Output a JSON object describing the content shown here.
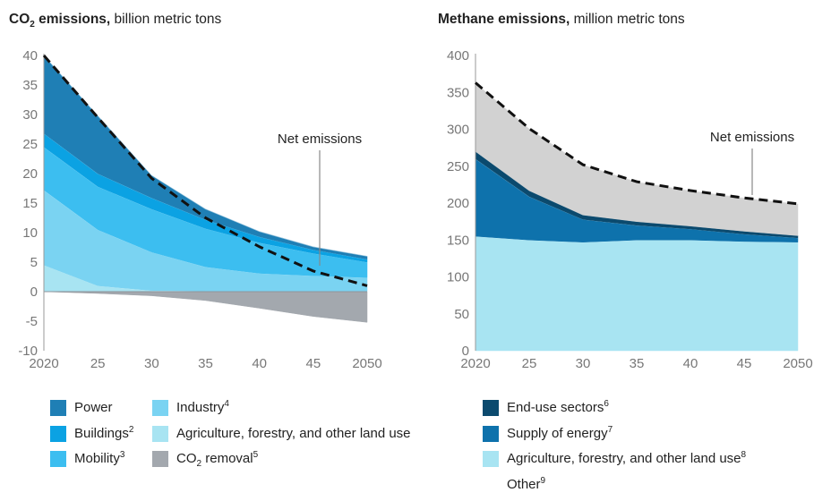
{
  "chart_data": [
    {
      "type": "area",
      "title_bold": "CO",
      "title_bold_sub": "2",
      "title_bold_rest": " emissions,",
      "title_unit": " billion metric tons",
      "x_ticks": [
        "2020",
        "25",
        "30",
        "35",
        "40",
        "45",
        "2050"
      ],
      "x": [
        2020,
        2025,
        2030,
        2035,
        2040,
        2045,
        2050
      ],
      "ylim": [
        -10,
        40
      ],
      "y_ticks": [
        "40",
        "35",
        "30",
        "25",
        "20",
        "15",
        "10",
        "5",
        "0",
        "-5",
        "-10"
      ],
      "colors": {
        "power": "#1f7fb5",
        "buildings": "#0ba2e3",
        "mobility": "#3cbef0",
        "industry": "#7ad3f2",
        "agriculture": "#a8e4f2",
        "removal": "#a3a8ae"
      },
      "series": [
        {
          "key": "agriculture",
          "name": "Agriculture, forestry, and other land use",
          "values": [
            4.5,
            1.0,
            0.2,
            0.1,
            0.1,
            0.1,
            0.1
          ]
        },
        {
          "key": "industry",
          "name": "Industry",
          "sup": "4",
          "values": [
            12.7,
            9.5,
            6.5,
            4.1,
            3.0,
            2.6,
            2.3
          ]
        },
        {
          "key": "mobility",
          "name": "Mobility",
          "sup": "3",
          "values": [
            7.3,
            7.3,
            7.3,
            6.5,
            5.2,
            3.8,
            2.6
          ]
        },
        {
          "key": "buildings",
          "name": "Buildings",
          "sup": "2",
          "values": [
            2.3,
            2.2,
            1.9,
            1.5,
            1.0,
            0.6,
            0.5
          ]
        },
        {
          "key": "power",
          "name": "Power",
          "values": [
            13.2,
            9.8,
            3.8,
            1.8,
            0.9,
            0.5,
            0.5
          ]
        }
      ],
      "removal": {
        "key": "removal",
        "name": "CO",
        "sub": "2",
        "name_rest": " removal",
        "sup": "5",
        "values": [
          0,
          -0.3,
          -0.7,
          -1.5,
          -2.8,
          -4.2,
          -5.2
        ]
      },
      "net_emissions": {
        "label": "Net emissions",
        "values": [
          40,
          29.5,
          19.2,
          12.5,
          7.6,
          3.5,
          1.0
        ]
      }
    },
    {
      "type": "area",
      "title_bold": "Methane emissions,",
      "title_unit": " million metric tons",
      "x_ticks": [
        "2020",
        "25",
        "30",
        "35",
        "40",
        "45",
        "2050"
      ],
      "x": [
        2020,
        2025,
        2030,
        2035,
        2040,
        2045,
        2050
      ],
      "ylim": [
        0,
        400
      ],
      "y_ticks": [
        "400",
        "350",
        "300",
        "250",
        "200",
        "150",
        "100",
        "50",
        "0"
      ],
      "colors": {
        "agriculture": "#a8e4f2",
        "supply": "#0e72ac",
        "enduse": "#0b4a6e",
        "other": "#d2d2d2"
      },
      "series": [
        {
          "key": "agriculture",
          "name": "Agriculture, forestry, and other land use",
          "sup": "8",
          "values": [
            155,
            150,
            147,
            150,
            150,
            148,
            147
          ]
        },
        {
          "key": "supply",
          "name": "Supply of energy",
          "sup": "7",
          "values": [
            105,
            59,
            31,
            20,
            15,
            10,
            6
          ]
        },
        {
          "key": "enduse",
          "name": "End-use sectors",
          "sup": "6",
          "values": [
            10,
            8,
            6,
            5,
            4,
            4,
            3
          ]
        },
        {
          "key": "other",
          "name": "Other",
          "sup": "9",
          "values": [
            93,
            84,
            68,
            54,
            48,
            45,
            43
          ]
        }
      ],
      "net_emissions": {
        "label": "Net emissions",
        "values": [
          363,
          301,
          252,
          229,
          217,
          207,
          199
        ]
      }
    }
  ]
}
